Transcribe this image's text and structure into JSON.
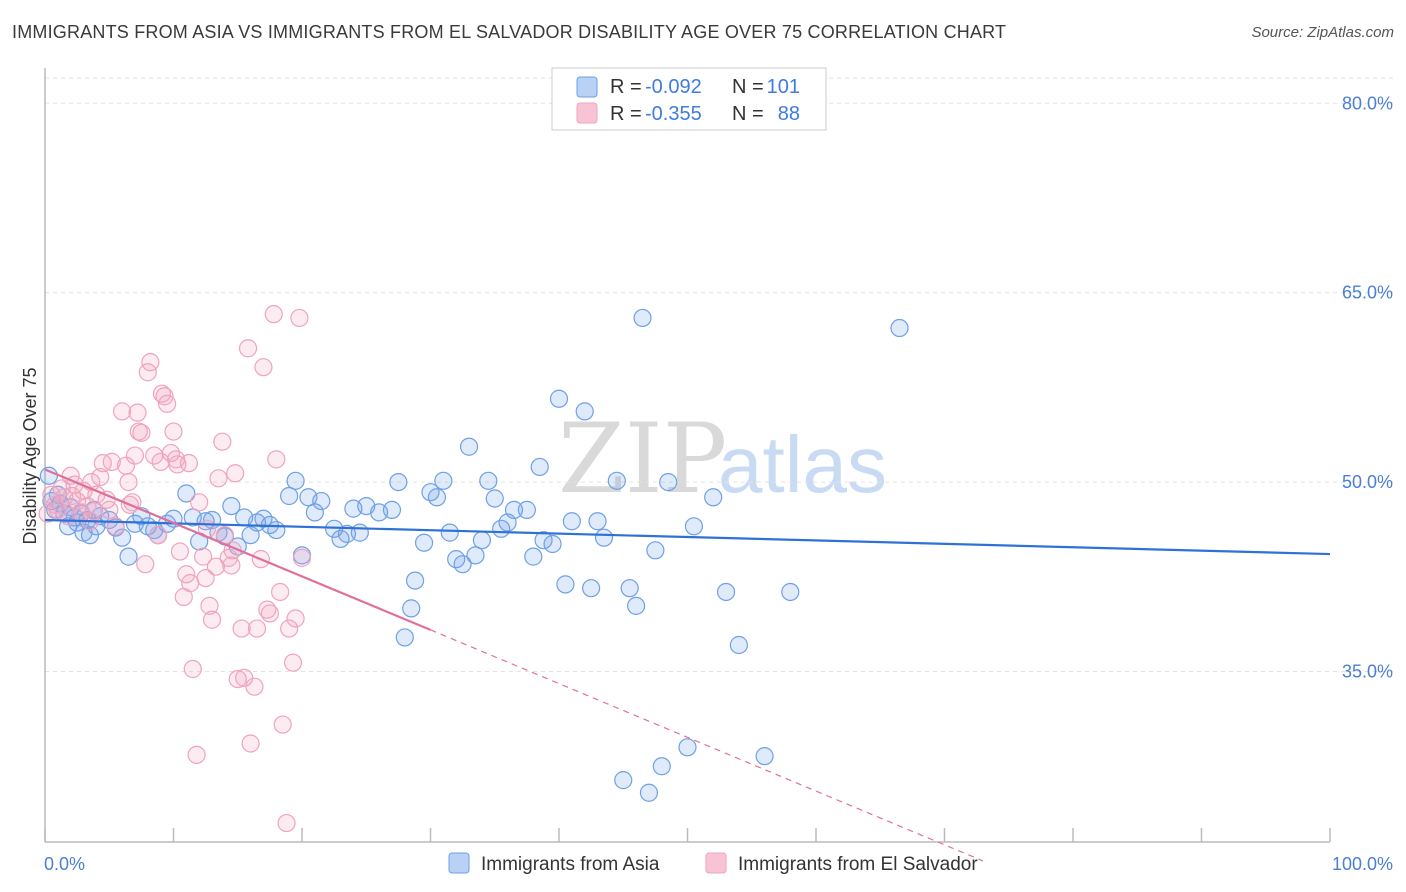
{
  "title": "IMMIGRANTS FROM ASIA VS IMMIGRANTS FROM EL SALVADOR DISABILITY AGE OVER 75 CORRELATION CHART",
  "source": "Source: ZipAtlas.com",
  "watermark": {
    "zip": "ZIP",
    "atlas": "atlas"
  },
  "legend_top": [
    {
      "r_label": "R =",
      "r_value": "-0.092",
      "n_label": "N =",
      "n_value": "101"
    },
    {
      "r_label": "R =",
      "r_value": "-0.355",
      "n_label": "N =",
      "n_value": "88"
    }
  ],
  "chart_data": {
    "type": "scatter",
    "ylabel": "Disability Age Over 75",
    "xlim": [
      0,
      100
    ],
    "ylim": [
      21.5,
      82
    ],
    "y_ticks": [
      35,
      50,
      65,
      80
    ],
    "y_tick_labels": [
      "35.0%",
      "50.0%",
      "65.0%",
      "80.0%"
    ],
    "x_tick_labels": [
      "0.0%",
      "100.0%"
    ],
    "grid": true,
    "legend": "bottom",
    "series": [
      {
        "name": "Immigrants from Asia",
        "color": "#6fa0e6",
        "trend": {
          "x0": 0,
          "y0": 47.0,
          "x1": 100,
          "y1": 44.3
        },
        "points": [
          [
            0.3,
            50.5
          ],
          [
            0.5,
            48.5
          ],
          [
            0.8,
            47.8
          ],
          [
            1.0,
            49.0
          ],
          [
            1.2,
            48.3
          ],
          [
            1.5,
            47.5
          ],
          [
            1.8,
            46.5
          ],
          [
            2.0,
            48.0
          ],
          [
            2.3,
            47.2
          ],
          [
            2.5,
            46.8
          ],
          [
            2.8,
            47.5
          ],
          [
            3.0,
            46.0
          ],
          [
            3.3,
            47.0
          ],
          [
            3.5,
            45.8
          ],
          [
            3.8,
            47.8
          ],
          [
            4.0,
            46.5
          ],
          [
            4.3,
            47.3
          ],
          [
            5.0,
            47.0
          ],
          [
            5.5,
            46.4
          ],
          [
            6.0,
            45.6
          ],
          [
            6.5,
            44.1
          ],
          [
            7.0,
            46.7
          ],
          [
            7.5,
            47.3
          ],
          [
            8.0,
            46.5
          ],
          [
            8.5,
            46.2
          ],
          [
            8.8,
            45.8
          ],
          [
            9.5,
            46.7
          ],
          [
            10.0,
            47.1
          ],
          [
            11.0,
            49.1
          ],
          [
            11.5,
            47.2
          ],
          [
            12.0,
            45.3
          ],
          [
            12.5,
            46.9
          ],
          [
            13.0,
            47.0
          ],
          [
            13.5,
            46.0
          ],
          [
            14.0,
            45.7
          ],
          [
            14.5,
            48.1
          ],
          [
            15.0,
            44.9
          ],
          [
            15.5,
            47.2
          ],
          [
            16.0,
            45.8
          ],
          [
            16.5,
            46.8
          ],
          [
            17.0,
            47.1
          ],
          [
            17.5,
            46.6
          ],
          [
            18.0,
            46.2
          ],
          [
            19.0,
            48.9
          ],
          [
            19.5,
            50.1
          ],
          [
            20.0,
            44.2
          ],
          [
            20.5,
            48.8
          ],
          [
            21.0,
            47.6
          ],
          [
            21.5,
            48.5
          ],
          [
            22.5,
            46.3
          ],
          [
            23.0,
            45.5
          ],
          [
            23.5,
            45.9
          ],
          [
            24.0,
            47.9
          ],
          [
            24.5,
            46.0
          ],
          [
            25.0,
            48.1
          ],
          [
            26.0,
            47.6
          ],
          [
            27.0,
            47.8
          ],
          [
            27.5,
            50.0
          ],
          [
            28.0,
            37.7
          ],
          [
            28.5,
            40.0
          ],
          [
            28.8,
            42.2
          ],
          [
            29.5,
            45.2
          ],
          [
            30.0,
            49.2
          ],
          [
            30.5,
            48.8
          ],
          [
            31.0,
            50.1
          ],
          [
            31.5,
            46.0
          ],
          [
            32.0,
            43.9
          ],
          [
            32.5,
            43.5
          ],
          [
            33.0,
            52.8
          ],
          [
            33.5,
            44.2
          ],
          [
            34.0,
            45.4
          ],
          [
            34.5,
            50.1
          ],
          [
            35.0,
            48.7
          ],
          [
            35.5,
            46.3
          ],
          [
            36.0,
            46.8
          ],
          [
            36.5,
            47.8
          ],
          [
            37.5,
            47.8
          ],
          [
            38.0,
            44.1
          ],
          [
            38.5,
            51.2
          ],
          [
            38.8,
            45.4
          ],
          [
            39.5,
            45.1
          ],
          [
            40.0,
            56.6
          ],
          [
            40.5,
            41.9
          ],
          [
            41.0,
            46.9
          ],
          [
            42.0,
            55.6
          ],
          [
            42.5,
            41.6
          ],
          [
            43.0,
            46.9
          ],
          [
            43.5,
            45.6
          ],
          [
            44.5,
            50.1
          ],
          [
            45.5,
            41.6
          ],
          [
            46.0,
            40.2
          ],
          [
            46.5,
            63.0
          ],
          [
            47.5,
            44.6
          ],
          [
            48.5,
            50.0
          ],
          [
            50.5,
            46.5
          ],
          [
            52.0,
            48.8
          ],
          [
            53.0,
            41.3
          ],
          [
            54.0,
            37.1
          ],
          [
            58.0,
            41.3
          ],
          [
            66.5,
            62.2
          ],
          [
            45.0,
            26.4
          ],
          [
            48.0,
            27.5
          ],
          [
            56.0,
            28.3
          ],
          [
            47.0,
            25.4
          ],
          [
            50.0,
            29.0
          ]
        ]
      },
      {
        "name": "Immigrants from El Salvador",
        "color": "#f0a3bd",
        "trend": {
          "x0": 0,
          "y0": 51.0,
          "x1": 30,
          "y1": 38.3
        },
        "trend_ext": {
          "x0": 30,
          "y0": 38.3,
          "x1": 73,
          "y1": 20.0
        },
        "points": [
          [
            0.2,
            47.5
          ],
          [
            0.5,
            49.0
          ],
          [
            0.8,
            48.2
          ],
          [
            1.0,
            47.8
          ],
          [
            1.3,
            49.5
          ],
          [
            1.5,
            48.8
          ],
          [
            1.8,
            47.3
          ],
          [
            2.0,
            50.5
          ],
          [
            2.3,
            49.8
          ],
          [
            2.5,
            48.5
          ],
          [
            2.8,
            47.6
          ],
          [
            3.0,
            49.3
          ],
          [
            3.3,
            48.1
          ],
          [
            3.5,
            46.9
          ],
          [
            3.8,
            47.7
          ],
          [
            4.0,
            49.0
          ],
          [
            4.3,
            50.4
          ],
          [
            4.5,
            51.5
          ],
          [
            4.8,
            48.6
          ],
          [
            5.0,
            47.8
          ],
          [
            5.5,
            46.5
          ],
          [
            6.0,
            55.6
          ],
          [
            6.3,
            51.3
          ],
          [
            6.5,
            50.0
          ],
          [
            6.8,
            48.4
          ],
          [
            7.0,
            52.1
          ],
          [
            7.3,
            54.0
          ],
          [
            7.5,
            53.9
          ],
          [
            7.8,
            43.5
          ],
          [
            8.0,
            58.7
          ],
          [
            8.5,
            52.1
          ],
          [
            8.8,
            45.8
          ],
          [
            9.0,
            51.6
          ],
          [
            9.3,
            56.8
          ],
          [
            9.5,
            56.2
          ],
          [
            9.8,
            52.3
          ],
          [
            10.0,
            54.0
          ],
          [
            10.3,
            51.4
          ],
          [
            10.5,
            44.5
          ],
          [
            10.8,
            40.9
          ],
          [
            11.0,
            42.7
          ],
          [
            11.3,
            42.0
          ],
          [
            11.5,
            35.2
          ],
          [
            11.8,
            28.4
          ],
          [
            12.0,
            48.4
          ],
          [
            12.3,
            44.1
          ],
          [
            12.5,
            42.4
          ],
          [
            12.8,
            40.2
          ],
          [
            13.0,
            39.1
          ],
          [
            13.3,
            43.3
          ],
          [
            13.5,
            50.3
          ],
          [
            13.8,
            53.2
          ],
          [
            14.0,
            45.8
          ],
          [
            14.3,
            44.0
          ],
          [
            14.5,
            43.4
          ],
          [
            14.8,
            50.7
          ],
          [
            15.0,
            34.4
          ],
          [
            15.3,
            38.4
          ],
          [
            15.5,
            34.5
          ],
          [
            15.8,
            60.6
          ],
          [
            16.0,
            29.3
          ],
          [
            16.3,
            33.8
          ],
          [
            16.5,
            38.4
          ],
          [
            16.8,
            43.9
          ],
          [
            17.0,
            59.1
          ],
          [
            17.3,
            39.9
          ],
          [
            17.5,
            39.6
          ],
          [
            17.8,
            63.3
          ],
          [
            18.0,
            51.8
          ],
          [
            18.3,
            41.3
          ],
          [
            18.5,
            30.8
          ],
          [
            18.8,
            23.0
          ],
          [
            19.0,
            38.4
          ],
          [
            19.3,
            35.7
          ],
          [
            19.5,
            39.2
          ],
          [
            19.8,
            63.0
          ],
          [
            20.0,
            44.0
          ],
          [
            10.2,
            51.8
          ],
          [
            7.2,
            55.5
          ],
          [
            8.2,
            59.5
          ],
          [
            9.1,
            57.0
          ],
          [
            5.2,
            51.6
          ],
          [
            6.6,
            48.2
          ],
          [
            3.6,
            50.0
          ],
          [
            2.1,
            48.9
          ],
          [
            11.2,
            51.5
          ],
          [
            12.6,
            46.3
          ],
          [
            14.6,
            44.6
          ]
        ]
      }
    ]
  }
}
